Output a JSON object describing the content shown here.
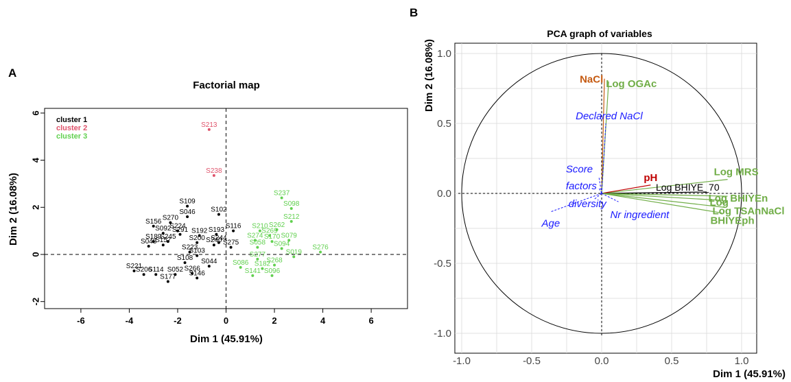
{
  "panel_labels": {
    "a": "A",
    "b": "B"
  },
  "colors": {
    "cluster1": "#000000",
    "cluster2": "#df536b",
    "cluster3": "#61d04f",
    "green_var": "#70ad47",
    "orange_var": "#c55a11",
    "red_var": "#c00000",
    "blue_var": "#1a1aff"
  },
  "chart_data": [
    {
      "type": "scatter",
      "title": "Factorial map",
      "xlabel": "Dim 1 (45.91%)",
      "ylabel": "Dim 2 (16.08%)",
      "xlim": [
        -7.5,
        7.5
      ],
      "ylim": [
        -2.3,
        6.2
      ],
      "xticks": [
        "-6",
        "-4",
        "-2",
        "0",
        "2",
        "4",
        "6"
      ],
      "yticks": [
        "-2",
        "0",
        "2",
        "4",
        "6"
      ],
      "grid": false,
      "legend_position": "top-left",
      "series": [
        {
          "name": "cluster 1",
          "points": [
            {
              "x": -1.6,
              "y": 2.05,
              "label": "S109"
            },
            {
              "x": -1.6,
              "y": 1.6,
              "label": "S046"
            },
            {
              "x": -0.3,
              "y": 1.7,
              "label": "S102"
            },
            {
              "x": -2.3,
              "y": 1.35,
              "label": "S270"
            },
            {
              "x": -3.0,
              "y": 1.2,
              "label": "S156"
            },
            {
              "x": -2.0,
              "y": 1.0,
              "label": "S224"
            },
            {
              "x": -2.6,
              "y": 0.9,
              "label": "S092"
            },
            {
              "x": -1.9,
              "y": 0.85,
              "label": "S291"
            },
            {
              "x": -1.1,
              "y": 0.8,
              "label": "S192"
            },
            {
              "x": -0.4,
              "y": 0.85,
              "label": "S193"
            },
            {
              "x": 0.3,
              "y": 1.0,
              "label": "S116"
            },
            {
              "x": -3.0,
              "y": 0.55,
              "label": "S189"
            },
            {
              "x": -2.4,
              "y": 0.55,
              "label": "S245"
            },
            {
              "x": -1.2,
              "y": 0.5,
              "label": "S200"
            },
            {
              "x": -0.3,
              "y": 0.5,
              "label": "S244"
            },
            {
              "x": -3.2,
              "y": 0.35,
              "label": "S048"
            },
            {
              "x": -2.6,
              "y": 0.4,
              "label": "S157"
            },
            {
              "x": -0.5,
              "y": 0.4,
              "label": "S240"
            },
            {
              "x": 0.2,
              "y": 0.3,
              "label": "S275"
            },
            {
              "x": -1.5,
              "y": 0.1,
              "label": "S223"
            },
            {
              "x": -1.2,
              "y": -0.05,
              "label": "S103"
            },
            {
              "x": -1.7,
              "y": -0.35,
              "label": "S108"
            },
            {
              "x": -0.7,
              "y": -0.5,
              "label": "S044"
            },
            {
              "x": -3.8,
              "y": -0.7,
              "label": "S221"
            },
            {
              "x": -3.4,
              "y": -0.85,
              "label": "S206"
            },
            {
              "x": -2.9,
              "y": -0.85,
              "label": "S114"
            },
            {
              "x": -2.1,
              "y": -0.85,
              "label": "S052"
            },
            {
              "x": -1.4,
              "y": -0.8,
              "label": "S266"
            },
            {
              "x": -1.2,
              "y": -1.0,
              "label": "S146"
            },
            {
              "x": -2.4,
              "y": -1.15,
              "label": "S177"
            }
          ]
        },
        {
          "name": "cluster 2",
          "points": [
            {
              "x": -0.7,
              "y": 5.3,
              "label": "S213"
            },
            {
              "x": -0.5,
              "y": 3.35,
              "label": "S238"
            }
          ]
        },
        {
          "name": "cluster 3",
          "points": [
            {
              "x": 2.3,
              "y": 2.4,
              "label": "S237"
            },
            {
              "x": 2.7,
              "y": 1.95,
              "label": "S098"
            },
            {
              "x": 2.7,
              "y": 1.4,
              "label": "S212"
            },
            {
              "x": 1.4,
              "y": 1.0,
              "label": "S210"
            },
            {
              "x": 2.1,
              "y": 1.05,
              "label": "S262"
            },
            {
              "x": 1.8,
              "y": 0.8,
              "label": "S269"
            },
            {
              "x": 1.2,
              "y": 0.6,
              "label": "S274"
            },
            {
              "x": 1.9,
              "y": 0.55,
              "label": "S170"
            },
            {
              "x": 2.6,
              "y": 0.6,
              "label": "S079"
            },
            {
              "x": 1.3,
              "y": 0.3,
              "label": "S058"
            },
            {
              "x": 2.3,
              "y": 0.25,
              "label": "S094"
            },
            {
              "x": 3.9,
              "y": 0.1,
              "label": "S276"
            },
            {
              "x": 2.8,
              "y": -0.1,
              "label": "S019"
            },
            {
              "x": 1.3,
              "y": -0.2,
              "label": "S277"
            },
            {
              "x": 2.0,
              "y": -0.45,
              "label": "S268"
            },
            {
              "x": 0.6,
              "y": -0.55,
              "label": "S086"
            },
            {
              "x": 1.5,
              "y": -0.6,
              "label": "S182"
            },
            {
              "x": 1.1,
              "y": -0.9,
              "label": "S141"
            },
            {
              "x": 1.9,
              "y": -0.9,
              "label": "S096"
            }
          ]
        }
      ]
    },
    {
      "type": "scatter",
      "title": "PCA graph of variables",
      "xlabel": "Dim 1 (45.91%)",
      "ylabel": "Dim 2 (16.08%)",
      "xlim": [
        -1.0,
        1.0
      ],
      "ylim": [
        -1.0,
        1.0
      ],
      "xticks": [
        "-1.0",
        "-0.5",
        "0.0",
        "0.5",
        "1.0"
      ],
      "yticks": [
        "-1.0",
        "-0.5",
        "0.0",
        "0.5",
        "1.0"
      ],
      "grid": true,
      "unit_circle": true,
      "vectors": [
        {
          "name": "NaCl",
          "x": 0.02,
          "y": 0.82,
          "group": "orange"
        },
        {
          "name": "Log OGAc",
          "x": 0.05,
          "y": 0.8,
          "group": "green"
        },
        {
          "name": "Log MRS",
          "x": 0.9,
          "y": 0.1,
          "group": "green"
        },
        {
          "name": "pH",
          "x": 0.35,
          "y": 0.06,
          "group": "red"
        },
        {
          "name": "Log BHIYE_70",
          "x": 0.75,
          "y": 0.01,
          "group": "black"
        },
        {
          "name": "Log BHIYEn",
          "x": 0.9,
          "y": -0.02,
          "group": "green"
        },
        {
          "name": "Log",
          "x": 0.87,
          "y": -0.05,
          "group": "green"
        },
        {
          "name": "Log TSAnNaCl",
          "x": 0.88,
          "y": -0.1,
          "group": "green"
        },
        {
          "name": "BHIYEph",
          "x": 0.86,
          "y": -0.14,
          "group": "green"
        }
      ],
      "supplementary": [
        {
          "name": "Declared NaCl",
          "x": 0.03,
          "y": 0.5
        },
        {
          "name": "Score",
          "x": -0.02,
          "y": 0.12
        },
        {
          "name": "factors",
          "x": -0.02,
          "y": 0.04
        },
        {
          "name": "diversity",
          "x": -0.05,
          "y": -0.04
        },
        {
          "name": "Nr ingredient",
          "x": 0.12,
          "y": -0.06
        },
        {
          "name": "Age",
          "x": -0.36,
          "y": -0.13
        }
      ]
    }
  ]
}
